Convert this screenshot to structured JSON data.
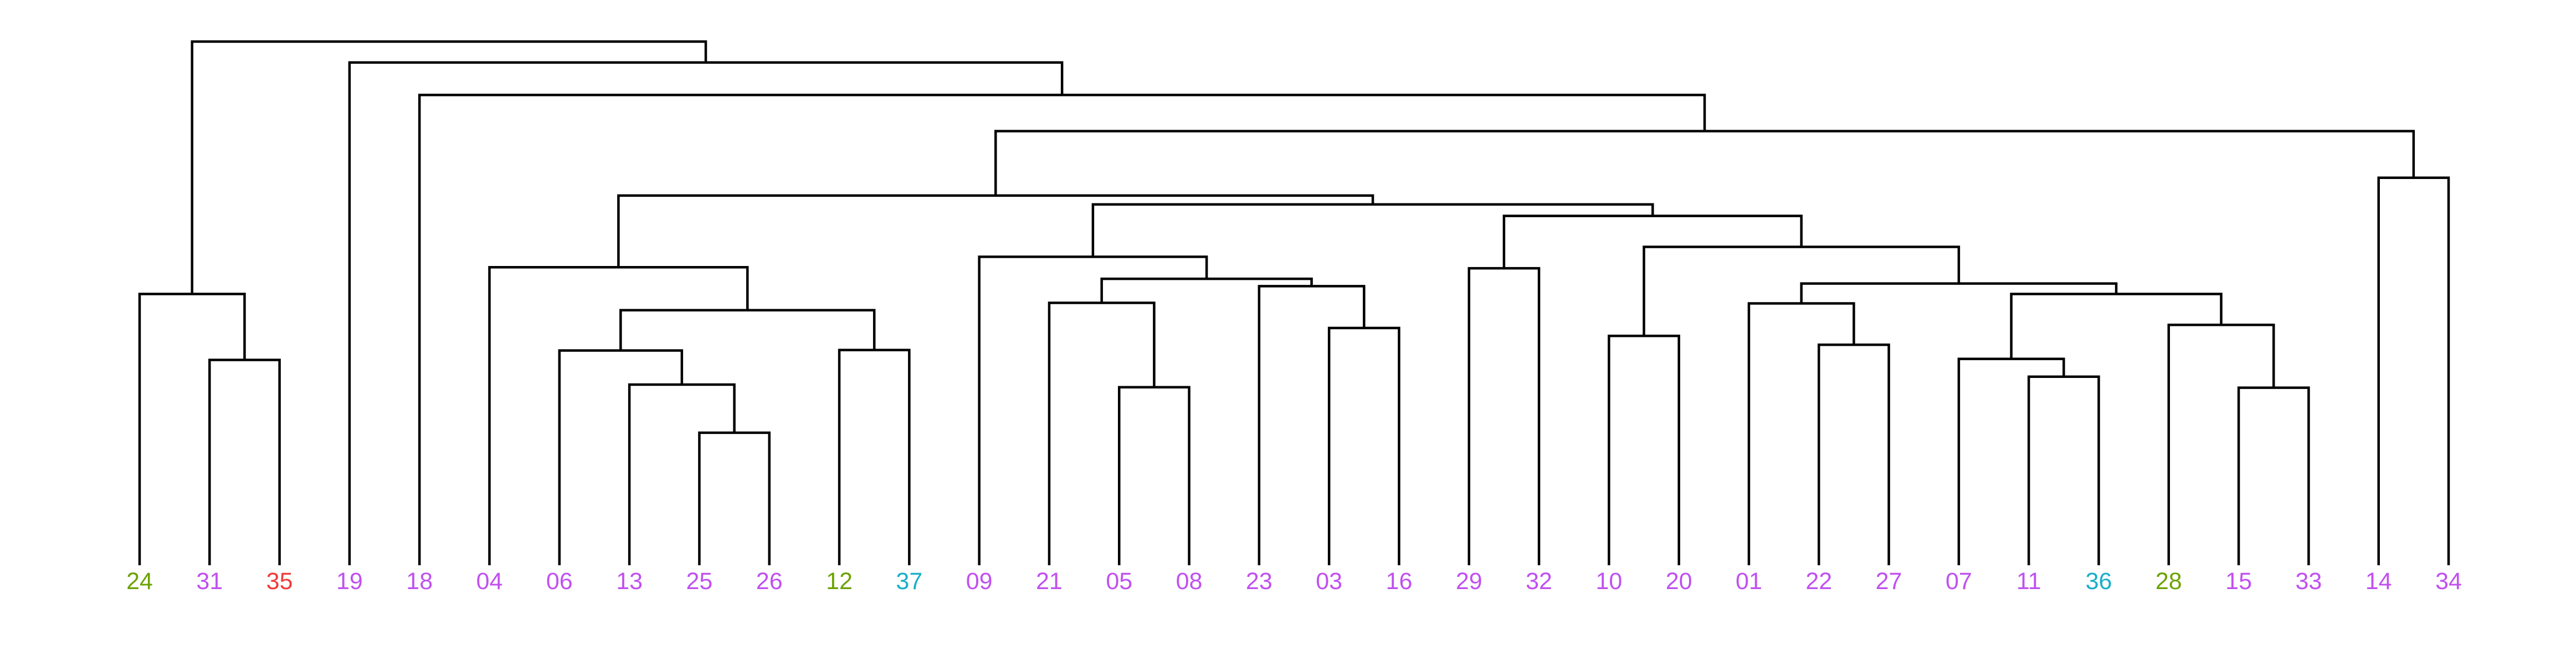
{
  "chart_data": {
    "type": "dendrogram",
    "title": "",
    "xlabel": "",
    "ylabel": "",
    "colors": {
      "purple": "#C050F0",
      "green": "#6BA300",
      "red": "#F23A3A",
      "teal": "#18AFC7",
      "branch": "#000000"
    },
    "leaves": [
      {
        "label": "24",
        "color": "#6BA300"
      },
      {
        "label": "31",
        "color": "#C050F0"
      },
      {
        "label": "35",
        "color": "#F23A3A"
      },
      {
        "label": "19",
        "color": "#C050F0"
      },
      {
        "label": "18",
        "color": "#C050F0"
      },
      {
        "label": "04",
        "color": "#C050F0"
      },
      {
        "label": "06",
        "color": "#C050F0"
      },
      {
        "label": "13",
        "color": "#C050F0"
      },
      {
        "label": "25",
        "color": "#C050F0"
      },
      {
        "label": "26",
        "color": "#C050F0"
      },
      {
        "label": "12",
        "color": "#6BA300"
      },
      {
        "label": "37",
        "color": "#18AFC7"
      },
      {
        "label": "09",
        "color": "#C050F0"
      },
      {
        "label": "21",
        "color": "#C050F0"
      },
      {
        "label": "05",
        "color": "#C050F0"
      },
      {
        "label": "08",
        "color": "#C050F0"
      },
      {
        "label": "23",
        "color": "#C050F0"
      },
      {
        "label": "03",
        "color": "#C050F0"
      },
      {
        "label": "16",
        "color": "#C050F0"
      },
      {
        "label": "29",
        "color": "#C050F0"
      },
      {
        "label": "32",
        "color": "#C050F0"
      },
      {
        "label": "10",
        "color": "#C050F0"
      },
      {
        "label": "20",
        "color": "#C050F0"
      },
      {
        "label": "01",
        "color": "#C050F0"
      },
      {
        "label": "22",
        "color": "#C050F0"
      },
      {
        "label": "27",
        "color": "#C050F0"
      },
      {
        "label": "07",
        "color": "#C050F0"
      },
      {
        "label": "11",
        "color": "#C050F0"
      },
      {
        "label": "36",
        "color": "#18AFC7"
      },
      {
        "label": "28",
        "color": "#6BA300"
      },
      {
        "label": "15",
        "color": "#C050F0"
      },
      {
        "label": "33",
        "color": "#C050F0"
      },
      {
        "label": "14",
        "color": "#C050F0"
      },
      {
        "label": "34",
        "color": "#C050F0"
      }
    ],
    "merges": [
      {
        "id": "M01",
        "left": "25",
        "right": "26",
        "height": 0.253
      },
      {
        "id": "M02",
        "left": "13",
        "right": "M01",
        "height": 0.345
      },
      {
        "id": "M03",
        "left": "06",
        "right": "M02",
        "height": 0.41
      },
      {
        "id": "M04",
        "left": "12",
        "right": "37",
        "height": 0.411
      },
      {
        "id": "M05",
        "left": "M03",
        "right": "M04",
        "height": 0.487
      },
      {
        "id": "M06",
        "left": "04",
        "right": "M05",
        "height": 0.569
      },
      {
        "id": "M07",
        "left": "05",
        "right": "08",
        "height": 0.34
      },
      {
        "id": "M08",
        "left": "21",
        "right": "M07",
        "height": 0.501
      },
      {
        "id": "M09",
        "left": "03",
        "right": "16",
        "height": 0.453
      },
      {
        "id": "M10",
        "left": "23",
        "right": "M09",
        "height": 0.533
      },
      {
        "id": "M11",
        "left": "M08",
        "right": "M10",
        "height": 0.547
      },
      {
        "id": "M12",
        "left": "09",
        "right": "M11",
        "height": 0.589
      },
      {
        "id": "M13",
        "left": "29",
        "right": "32",
        "height": 0.567
      },
      {
        "id": "M14",
        "left": "10",
        "right": "20",
        "height": 0.438
      },
      {
        "id": "M15",
        "left": "22",
        "right": "27",
        "height": 0.421
      },
      {
        "id": "M16",
        "left": "01",
        "right": "M15",
        "height": 0.5
      },
      {
        "id": "M17",
        "left": "11",
        "right": "36",
        "height": 0.36
      },
      {
        "id": "M18",
        "left": "07",
        "right": "M17",
        "height": 0.394
      },
      {
        "id": "M19",
        "left": "15",
        "right": "33",
        "height": 0.339
      },
      {
        "id": "M20",
        "left": "28",
        "right": "M19",
        "height": 0.459
      },
      {
        "id": "M21",
        "left": "M18",
        "right": "M20",
        "height": 0.518
      },
      {
        "id": "M22",
        "left": "M16",
        "right": "M21",
        "height": 0.538
      },
      {
        "id": "M23",
        "left": "M14",
        "right": "M22",
        "height": 0.608
      },
      {
        "id": "M24",
        "left": "M13",
        "right": "M23",
        "height": 0.667
      },
      {
        "id": "M25",
        "left": "M12",
        "right": "M24",
        "height": 0.689
      },
      {
        "id": "M26",
        "left": "M06",
        "right": "M25",
        "height": 0.706
      },
      {
        "id": "M27",
        "left": "14",
        "right": "34",
        "height": 0.74
      },
      {
        "id": "M28",
        "left": "M26",
        "right": "M27",
        "height": 0.829
      },
      {
        "id": "M29",
        "left": "18",
        "right": "M28",
        "height": 0.898
      },
      {
        "id": "M30",
        "left": "19",
        "right": "M29",
        "height": 0.96
      },
      {
        "id": "M31",
        "left": "31",
        "right": "35",
        "height": 0.392
      },
      {
        "id": "M32",
        "left": "24",
        "right": "M31",
        "height": 0.518
      },
      {
        "id": "M33",
        "left": "M32",
        "right": "M30",
        "height": 1.0
      }
    ]
  }
}
